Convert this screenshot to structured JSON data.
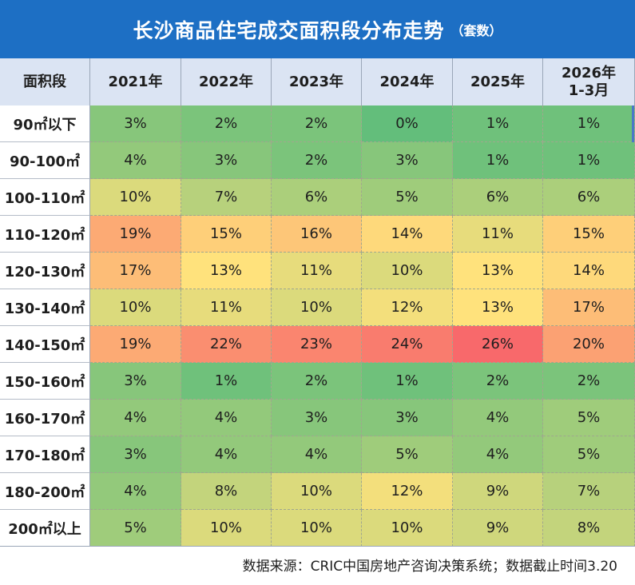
{
  "title": "长沙商品住宅成交面积段分布走势",
  "title_unit": "（套数）",
  "source": "数据来源：CRIC中国房地产咨询决策系统；数据截止时间3.20",
  "colors": {
    "header_bg": "#1d6fc4",
    "subheader_bg": "#dbe4f3",
    "scale_low": "#63be7b",
    "scale_mid": "#ffe27c",
    "scale_high": "#f8696b"
  },
  "chart_data": {
    "type": "heatmap",
    "title": "长沙商品住宅成交面积段分布走势",
    "unit": "（套数）",
    "row_header": "面积段",
    "columns": [
      "2021年",
      "2022年",
      "2023年",
      "2024年",
      "2025年",
      "2026年\n1-3月"
    ],
    "rows": [
      "90㎡以下",
      "90-100㎡",
      "100-110㎡",
      "110-120㎡",
      "120-130㎡",
      "130-140㎡",
      "140-150㎡",
      "150-160㎡",
      "160-170㎡",
      "170-180㎡",
      "180-200㎡",
      "200㎡以上"
    ],
    "values": [
      [
        3,
        2,
        2,
        0,
        1,
        1
      ],
      [
        4,
        3,
        2,
        3,
        1,
        1
      ],
      [
        10,
        7,
        6,
        5,
        6,
        6
      ],
      [
        19,
        15,
        16,
        14,
        11,
        15
      ],
      [
        17,
        13,
        11,
        10,
        13,
        14
      ],
      [
        10,
        11,
        10,
        12,
        13,
        17
      ],
      [
        19,
        22,
        23,
        24,
        26,
        20
      ],
      [
        3,
        1,
        2,
        1,
        2,
        2
      ],
      [
        4,
        4,
        3,
        3,
        4,
        5
      ],
      [
        3,
        4,
        4,
        5,
        4,
        5
      ],
      [
        4,
        8,
        10,
        12,
        9,
        7
      ],
      [
        5,
        10,
        10,
        10,
        9,
        8
      ]
    ],
    "value_suffix": "%"
  }
}
